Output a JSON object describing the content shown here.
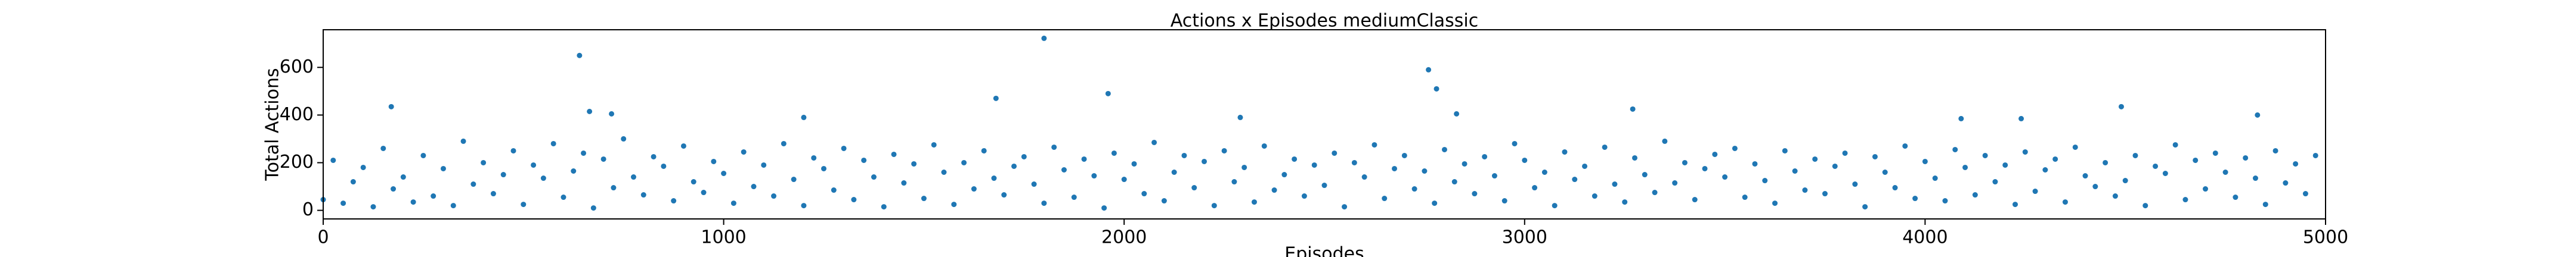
{
  "chart_data": {
    "type": "scatter",
    "title": "Actions x Episodes mediumClassic",
    "xlabel": "Episodes",
    "ylabel": "Total Actions",
    "color": "#1f77b4",
    "xlim": [
      0,
      5000
    ],
    "ylim": [
      -36,
      758
    ],
    "xticks": [
      0,
      1000,
      2000,
      3000,
      4000,
      5000
    ],
    "yticks": [
      0,
      200,
      400,
      600
    ],
    "x": [
      0,
      25,
      50,
      75,
      100,
      125,
      150,
      175,
      200,
      225,
      250,
      275,
      300,
      325,
      350,
      375,
      400,
      425,
      450,
      475,
      500,
      525,
      550,
      575,
      600,
      625,
      650,
      675,
      700,
      725,
      750,
      775,
      800,
      825,
      850,
      875,
      900,
      925,
      950,
      975,
      1000,
      1025,
      1050,
      1075,
      1100,
      1125,
      1150,
      1175,
      1200,
      1225,
      1250,
      1275,
      1300,
      1325,
      1350,
      1375,
      1400,
      1425,
      1450,
      1475,
      1500,
      1525,
      1550,
      1575,
      1600,
      1625,
      1650,
      1675,
      1700,
      1725,
      1750,
      1775,
      1800,
      1825,
      1850,
      1875,
      1900,
      1925,
      1950,
      1975,
      2000,
      2025,
      2050,
      2075,
      2100,
      2125,
      2150,
      2175,
      2200,
      2225,
      2250,
      2275,
      2300,
      2325,
      2350,
      2375,
      2400,
      2425,
      2450,
      2475,
      2500,
      2525,
      2550,
      2575,
      2600,
      2625,
      2650,
      2675,
      2700,
      2725,
      2750,
      2775,
      2800,
      2825,
      2850,
      2875,
      2900,
      2925,
      2950,
      2975,
      3000,
      3025,
      3050,
      3075,
      3100,
      3125,
      3150,
      3175,
      3200,
      3225,
      3250,
      3275,
      3300,
      3325,
      3350,
      3375,
      3400,
      3425,
      3450,
      3475,
      3500,
      3525,
      3550,
      3575,
      3600,
      3625,
      3650,
      3675,
      3700,
      3725,
      3750,
      3775,
      3800,
      3825,
      3850,
      3875,
      3900,
      3925,
      3950,
      3975,
      4000,
      4025,
      4050,
      4075,
      4100,
      4125,
      4150,
      4175,
      4200,
      4225,
      4250,
      4275,
      4300,
      4325,
      4350,
      4375,
      4400,
      4425,
      4450,
      4475,
      4500,
      4525,
      4550,
      4575,
      4600,
      4625,
      4650,
      4675,
      4700,
      4725,
      4750,
      4775,
      4800,
      4825,
      4850,
      4875,
      4900,
      4925,
      4950,
      4975,
      640,
      1800,
      2760,
      1960,
      2780,
      1680,
      665,
      720,
      170,
      3270,
      4490,
      4830,
      4090,
      2830,
      4240,
      1200,
      2290
    ],
    "values": [
      45,
      210,
      30,
      120,
      180,
      15,
      260,
      90,
      140,
      35,
      230,
      60,
      175,
      20,
      290,
      110,
      200,
      70,
      150,
      250,
      25,
      190,
      135,
      280,
      55,
      165,
      240,
      10,
      215,
      95,
      300,
      140,
      65,
      225,
      185,
      40,
      270,
      120,
      75,
      205,
      155,
      30,
      245,
      100,
      190,
      60,
      280,
      130,
      20,
      220,
      175,
      85,
      260,
      45,
      210,
      140,
      15,
      235,
      115,
      195,
      50,
      275,
      160,
      25,
      200,
      90,
      250,
      135,
      65,
      185,
      225,
      110,
      30,
      265,
      170,
      55,
      215,
      145,
      10,
      240,
      130,
      195,
      70,
      285,
      40,
      160,
      230,
      95,
      205,
      20,
      250,
      120,
      180,
      35,
      270,
      85,
      150,
      215,
      60,
      190,
      105,
      240,
      15,
      200,
      140,
      275,
      50,
      175,
      230,
      90,
      165,
      30,
      255,
      120,
      195,
      70,
      225,
      145,
      40,
      280,
      210,
      95,
      160,
      20,
      245,
      130,
      185,
      60,
      265,
      110,
      35,
      220,
      150,
      75,
      290,
      115,
      200,
      45,
      175,
      235,
      140,
      260,
      55,
      195,
      125,
      30,
      250,
      165,
      85,
      215,
      70,
      185,
      240,
      110,
      15,
      225,
      160,
      95,
      270,
      50,
      205,
      135,
      40,
      255,
      180,
      65,
      230,
      120,
      190,
      25,
      245,
      80,
      170,
      215,
      35,
      265,
      145,
      100,
      200,
      60,
      125,
      230,
      20,
      185,
      155,
      275,
      45,
      210,
      90,
      240,
      160,
      55,
      220,
      135,
      25,
      250,
      115,
      195,
      70,
      230,
      650,
      722,
      590,
      490,
      510,
      470,
      415,
      405,
      435,
      425,
      435,
      400,
      385,
      405,
      385,
      390,
      390
    ]
  }
}
